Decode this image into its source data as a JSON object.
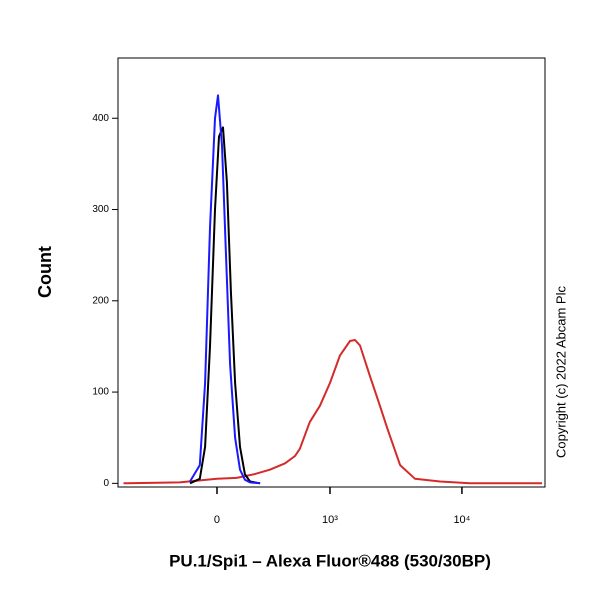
{
  "chart_data": {
    "type": "line",
    "xlabel": "PU.1/Spi1 – Alexa Fluor®488 (530/30BP)",
    "ylabel": "Count",
    "annotation": "Copyright (c) 2022 Abcam Plc",
    "xscale": "biexponential",
    "xlim": [
      -775,
      42100
    ],
    "xticks": [
      0,
      {
        "value": 1000,
        "label": "10³"
      },
      {
        "value": 10000,
        "label": "10⁴"
      }
    ],
    "ylim": [
      -4,
      466
    ],
    "yticks": [
      0,
      100,
      200,
      300,
      400
    ],
    "series": [
      {
        "color": "#d42a2a",
        "x": [
          -700,
          -200,
          0,
          100,
          200,
          303,
          425,
          520,
          572,
          690,
          833,
          1000,
          1195,
          1428,
          1560,
          1703,
          2034,
          2336,
          2777,
          3425,
          4440,
          6850,
          11500,
          40000
        ],
        "values": [
          0,
          1,
          5,
          6,
          10,
          15,
          22,
          30,
          38,
          67,
          85,
          110,
          140,
          156,
          157,
          151,
          117,
          91,
          58,
          20,
          5,
          2,
          0,
          0
        ]
      },
      {
        "color": "#000000",
        "x": [
          -140,
          -87,
          -60,
          -35,
          -10,
          10,
          30,
          50,
          70,
          92,
          118,
          145,
          174,
          236
        ],
        "values": [
          0,
          5,
          40,
          150,
          300,
          380,
          390,
          330,
          210,
          110,
          40,
          10,
          2,
          0
        ]
      },
      {
        "color": "#1a1aff",
        "x": [
          -140,
          -87,
          -60,
          -35,
          -10,
          5,
          25,
          45,
          66,
          92,
          118,
          145,
          174,
          236
        ],
        "values": [
          2,
          20,
          110,
          280,
          400,
          425,
          370,
          250,
          130,
          50,
          15,
          4,
          1,
          0
        ]
      }
    ]
  }
}
